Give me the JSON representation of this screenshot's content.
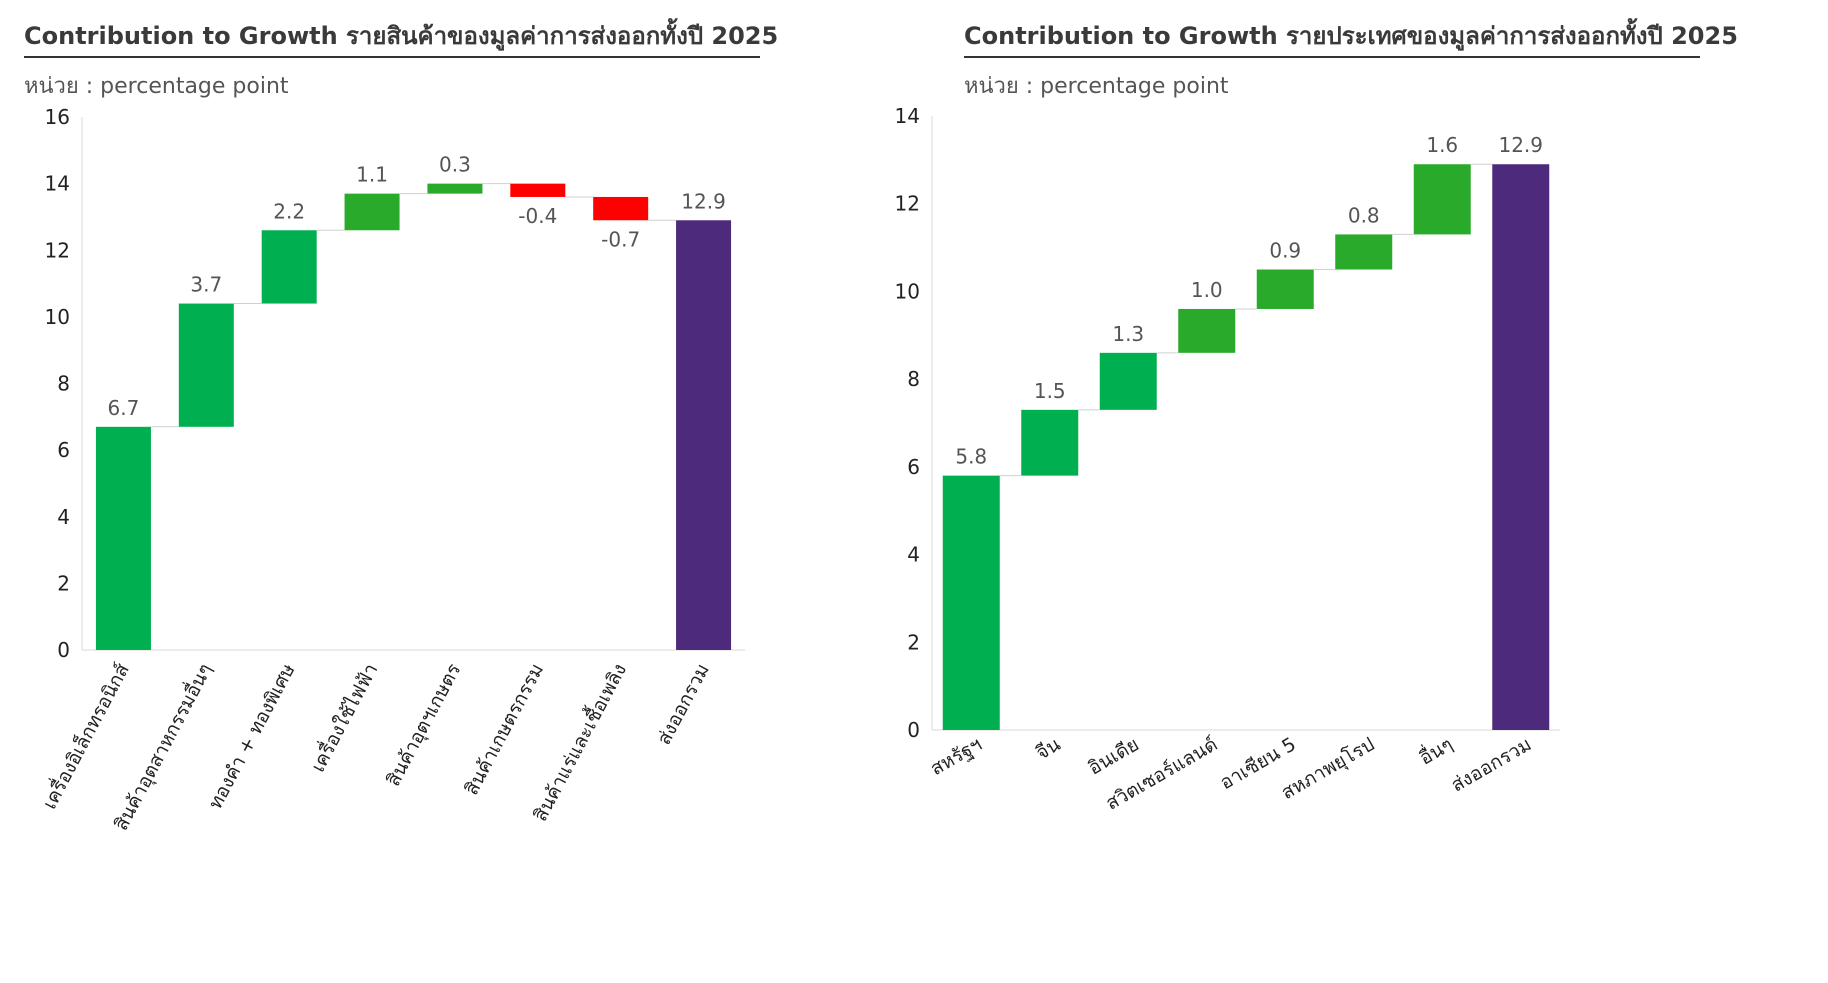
{
  "panels": [
    {
      "title": "Contribution to Growth รายสินค้าของมูลค่าการส่งออกทั้งปี 2025",
      "unit": "หน่วย : percentage point"
    },
    {
      "title": "Contribution to Growth รายประเทศของมูลค่าการส่งออกทั้งปี 2025",
      "unit": "หน่วย : percentage point"
    }
  ],
  "colors": {
    "positive": "#00b050",
    "positive_alt": "#2aaa2a",
    "negative": "#ff0000",
    "total": "#4e2a7c"
  },
  "chart_data": [
    {
      "type": "bar",
      "subtype": "waterfall",
      "title": "Contribution to Growth รายสินค้าของมูลค่าการส่งออกทั้งปี 2025",
      "ylabel": "percentage point",
      "ylim": [
        0,
        16
      ],
      "yticks": [
        0,
        2,
        4,
        6,
        8,
        10,
        12,
        14,
        16
      ],
      "grid": false,
      "categories": [
        "เครื่องอิเล็กทรอนิกส์",
        "สินค้าอุตสาหกรรมอื่นๆ",
        "ทองคำ + ทองพิเศษ",
        "เครื่องใช้ไฟฟ้า",
        "สินค้าอุตฯเกษตร",
        "สินค้าเกษตรกรรม",
        "สินค้าแร่และเชื้อเพลิง",
        "ส่งออกรวม"
      ],
      "values": [
        6.7,
        3.7,
        2.2,
        1.1,
        0.3,
        -0.4,
        -0.7,
        12.9
      ],
      "labels": [
        "6.7",
        "3.7",
        "2.2",
        "1.1",
        "0.3",
        "-0.4",
        "-0.7",
        "12.9"
      ],
      "bar_types": [
        "increase",
        "increase",
        "increase",
        "increase",
        "increase",
        "decrease",
        "decrease",
        "total"
      ]
    },
    {
      "type": "bar",
      "subtype": "waterfall",
      "title": "Contribution to Growth รายประเทศของมูลค่าการส่งออกทั้งปี 2025",
      "ylabel": "percentage point",
      "ylim": [
        0,
        14
      ],
      "yticks": [
        0,
        2,
        4,
        6,
        8,
        10,
        12,
        14
      ],
      "grid": false,
      "categories": [
        "สหรัฐฯ",
        "จีน",
        "อินเดีย",
        "สวิตเซอร์แลนด์",
        "อาเซียน 5",
        "สหภาพยุโรป",
        "อื่นๆ",
        "ส่งออกรวม"
      ],
      "values": [
        5.8,
        1.5,
        1.3,
        1.0,
        0.9,
        0.8,
        1.6,
        12.9
      ],
      "labels": [
        "5.8",
        "1.5",
        "1.3",
        "1.0",
        "0.9",
        "0.8",
        "1.6",
        "12.9"
      ],
      "bar_types": [
        "increase",
        "increase",
        "increase",
        "increase",
        "increase",
        "increase",
        "increase",
        "total"
      ]
    }
  ]
}
